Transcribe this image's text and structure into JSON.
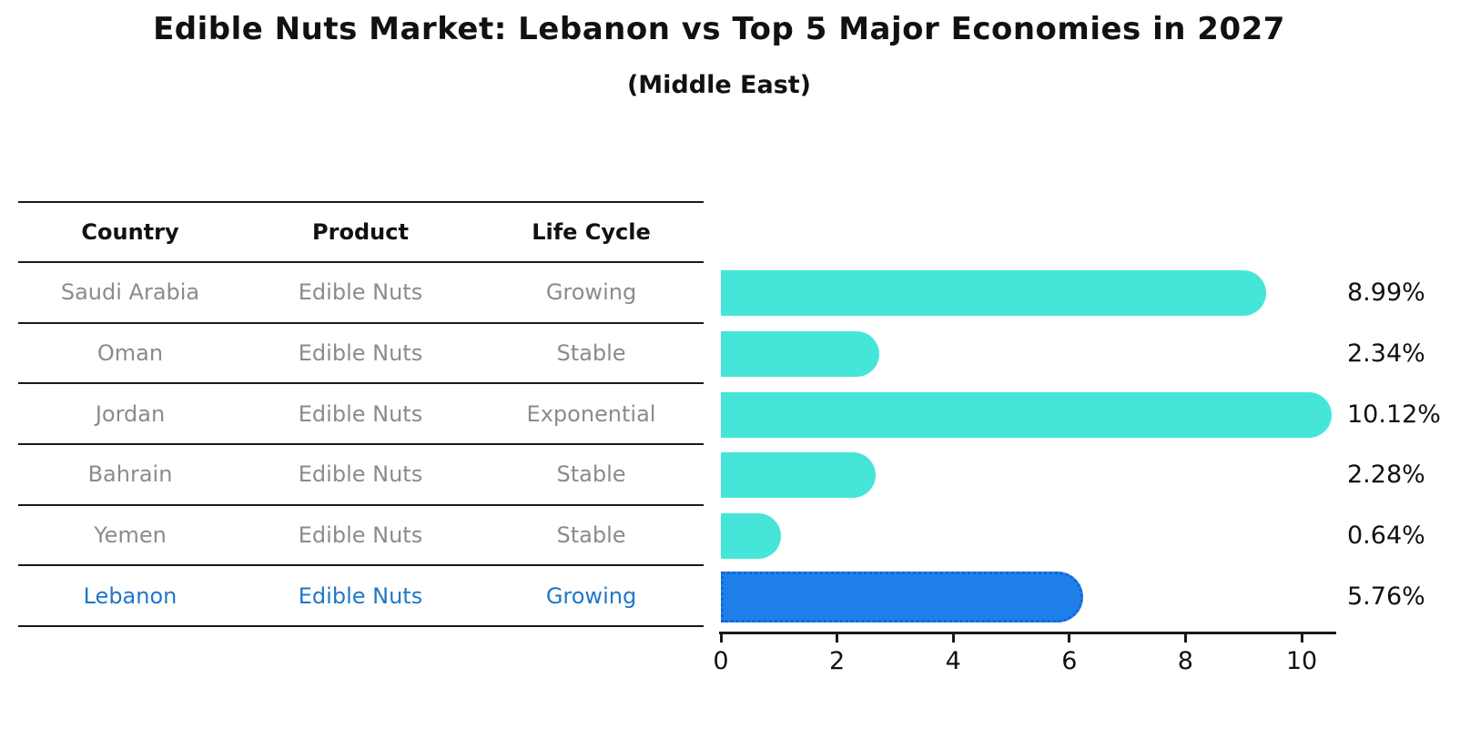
{
  "title": "Edible Nuts Market: Lebanon vs Top 5 Major Economies in 2027",
  "subtitle": "(Middle East)",
  "table": {
    "headers": [
      "Country",
      "Product",
      "Life Cycle"
    ],
    "rows": [
      {
        "country": "Saudi Arabia",
        "product": "Edible Nuts",
        "life_cycle": "Growing",
        "highlight": false
      },
      {
        "country": "Oman",
        "product": "Edible Nuts",
        "life_cycle": "Stable",
        "highlight": false
      },
      {
        "country": "Jordan",
        "product": "Edible Nuts",
        "life_cycle": "Exponential",
        "highlight": false
      },
      {
        "country": "Bahrain",
        "product": "Edible Nuts",
        "life_cycle": "Stable",
        "highlight": false
      },
      {
        "country": "Yemen",
        "product": "Edible Nuts",
        "life_cycle": "Stable",
        "highlight": false
      },
      {
        "country": "Lebanon",
        "product": "Edible Nuts",
        "life_cycle": "Growing",
        "highlight": true
      }
    ]
  },
  "chart_data": {
    "type": "bar",
    "orientation": "horizontal",
    "title": "Edible Nuts Market: Lebanon vs Top 5 Major Economies in 2027",
    "subtitle": "(Middle East)",
    "categories": [
      "Saudi Arabia",
      "Oman",
      "Jordan",
      "Bahrain",
      "Yemen",
      "Lebanon"
    ],
    "values": [
      8.99,
      2.34,
      10.12,
      2.28,
      0.64,
      5.76
    ],
    "value_labels": [
      "8.99%",
      "2.34%",
      "10.12%",
      "2.28%",
      "0.64%",
      "5.76%"
    ],
    "highlight_index": 5,
    "x_ticks": [
      0,
      2,
      4,
      6,
      8,
      10
    ],
    "x_tick_labels": [
      "0",
      "2",
      "4",
      "6",
      "8",
      "10"
    ],
    "xlim": [
      0,
      10.6
    ],
    "grid": false,
    "legend": false
  },
  "colors": {
    "bar_default": "#46e5da",
    "bar_highlight": "#1e7fe9",
    "bar_highlight_edge": "#1565d8",
    "highlight_text": "#1f77c8",
    "table_text": "#8b8b8b",
    "header_text": "#111111",
    "axis_line": "#1a1a1a"
  }
}
